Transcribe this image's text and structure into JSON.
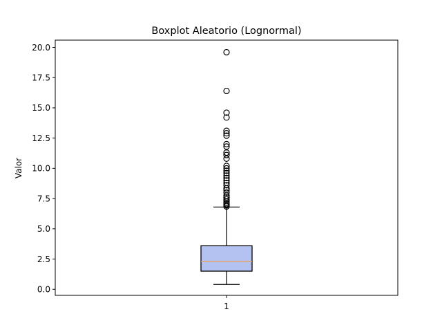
{
  "chart_data": {
    "type": "boxplot",
    "title": "Boxplot Aleatorio (Lognormal)",
    "xlabel": "",
    "ylabel": "Valor",
    "categories": [
      "1"
    ],
    "ylim": [
      -0.5,
      20.6
    ],
    "yticks": [
      0.0,
      2.5,
      5.0,
      7.5,
      10.0,
      12.5,
      15.0,
      17.5,
      20.0
    ],
    "ytick_labels": [
      "0.0",
      "2.5",
      "5.0",
      "7.5",
      "10.0",
      "12.5",
      "15.0",
      "17.5",
      "20.0"
    ],
    "grid": false,
    "box": {
      "whisker_low": 0.4,
      "q1": 1.5,
      "median": 2.3,
      "q3": 3.6,
      "whisker_high": 6.8
    },
    "outliers": [
      6.85,
      6.95,
      7.05,
      7.15,
      7.3,
      7.45,
      7.6,
      7.75,
      8.0,
      8.2,
      8.35,
      8.6,
      8.8,
      9.0,
      9.2,
      9.4,
      9.6,
      9.8,
      10.0,
      10.2,
      10.8,
      11.1,
      11.3,
      11.8,
      12.0,
      12.7,
      12.9,
      13.1,
      14.2,
      14.6,
      16.4,
      19.6
    ],
    "colors": {
      "box_fill": "#b3c2f0",
      "median": "#f0a050",
      "edge": "#000000"
    }
  }
}
